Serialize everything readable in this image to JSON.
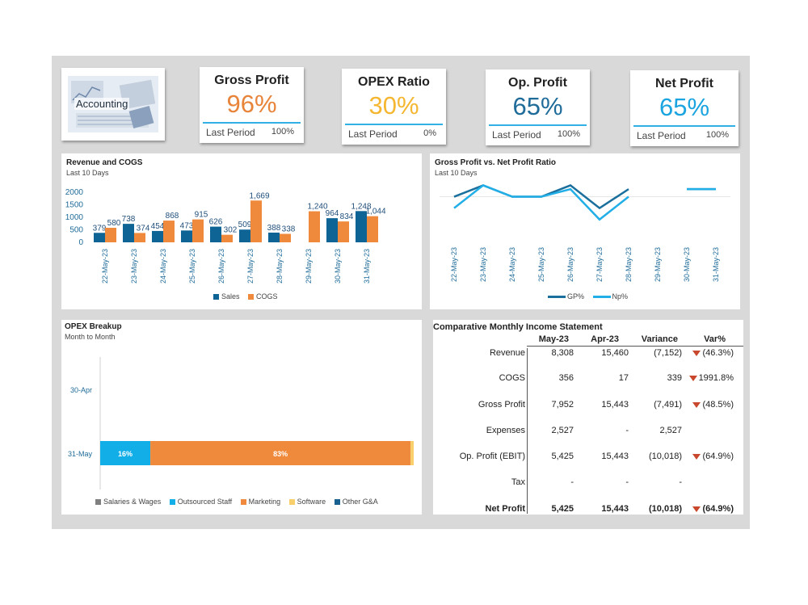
{
  "logo": {
    "label": "Accounting"
  },
  "kpis": [
    {
      "title": "Gross Profit",
      "value": "96%",
      "color": "#e8843a",
      "last_label": "Last Period",
      "last_value": "100%"
    },
    {
      "title": "OPEX Ratio",
      "value": "30%",
      "color": "#f5b731",
      "last_label": "Last Period",
      "last_value": "0%"
    },
    {
      "title": "Op. Profit",
      "value": "65%",
      "color": "#1f6b99",
      "last_label": "Last Period",
      "last_value": "100%"
    },
    {
      "title": "Net Profit",
      "value": "65%",
      "color": "#1ca4e0",
      "last_label": "Last Period",
      "last_value": "100%"
    }
  ],
  "revenue_chart": {
    "title": "Revenue and COGS",
    "subtitle": "Last 10 Days",
    "legend": [
      "Sales",
      "COGS"
    ],
    "colors": {
      "sales": "#0f6496",
      "cogs": "#ef8a3c"
    }
  },
  "gp_chart": {
    "title": "Gross Profit vs. Net Profit Ratio",
    "subtitle": "Last 10 Days",
    "legend": [
      "GP%",
      "Np%"
    ],
    "colors": {
      "gp": "#1a6f9c",
      "np": "#22aee6"
    }
  },
  "opex_chart": {
    "title": "OPEX Breakup",
    "subtitle": "Month to Month",
    "legend": [
      "Salaries & Wages",
      "Outsourced Staff",
      "Marketing",
      "Software",
      "Other G&A"
    ],
    "colors": [
      "#7f7f7f",
      "#12aee8",
      "#ef8a3c",
      "#f8cf6a",
      "#17608f"
    ]
  },
  "chart_data": [
    {
      "type": "bar",
      "categories": [
        "22-May-23",
        "23-May-23",
        "24-May-23",
        "25-May-23",
        "26-May-23",
        "27-May-23",
        "28-May-23",
        "29-May-23",
        "30-May-23",
        "31-May-23"
      ],
      "series": [
        {
          "name": "Sales",
          "values": [
            379,
            738,
            454,
            473,
            626,
            509,
            388,
            null,
            964,
            1248
          ],
          "labels": [
            "379",
            "738",
            "454",
            "473",
            "626",
            "509",
            "388",
            "",
            "964",
            "1,248"
          ]
        },
        {
          "name": "COGS",
          "values": [
            580,
            374,
            868,
            915,
            302,
            1669,
            338,
            1240,
            834,
            1044
          ],
          "labels": [
            "580",
            "374",
            "868",
            "915",
            "302",
            "1,669",
            "338",
            "1,240",
            "834",
            "1,044"
          ]
        }
      ],
      "yticks": [
        "2000",
        "1500",
        "1000",
        "500",
        "0"
      ],
      "ylim": [
        0,
        2000
      ]
    },
    {
      "type": "line",
      "categories": [
        "22-May-23",
        "23-May-23",
        "24-May-23",
        "25-May-23",
        "26-May-23",
        "27-May-23",
        "28-May-23",
        "29-May-23",
        "30-May-23",
        "31-May-23"
      ],
      "series": [
        {
          "name": "GP%",
          "values": [
            0.97,
            1.0,
            0.97,
            0.97,
            1.0,
            0.94,
            0.99,
            null,
            0.99,
            0.99
          ]
        },
        {
          "name": "Np%",
          "values": [
            0.94,
            1.0,
            0.97,
            0.97,
            0.99,
            0.91,
            0.97,
            null,
            0.99,
            0.99
          ]
        }
      ]
    },
    {
      "type": "bar",
      "orientation": "horizontal-stacked",
      "categories": [
        "30-Apr",
        "31-May"
      ],
      "series": [
        {
          "name": "Salaries & Wages",
          "values": [
            0,
            0
          ]
        },
        {
          "name": "Outsourced Staff",
          "values": [
            0,
            0.16
          ],
          "labels": [
            "",
            "16%"
          ]
        },
        {
          "name": "Marketing",
          "values": [
            0,
            0.83
          ],
          "labels": [
            "",
            "83%"
          ]
        },
        {
          "name": "Software",
          "values": [
            0,
            0.01
          ],
          "labels": [
            "",
            "1%"
          ]
        },
        {
          "name": "Other G&A",
          "values": [
            0,
            0
          ]
        }
      ]
    }
  ],
  "income": {
    "title": "Comparative Monthly Income Statement",
    "headers": [
      "May-23",
      "Apr-23",
      "Variance",
      "Var%"
    ],
    "rows": [
      {
        "label": "Revenue",
        "may": "8,308",
        "apr": "15,460",
        "var": "(7,152)",
        "pct": "(46.3%)",
        "down": true,
        "bold": false
      },
      {
        "label": "COGS",
        "may": "356",
        "apr": "17",
        "var": "339",
        "pct": "1991.8%",
        "down": true,
        "bold": false
      },
      {
        "label": "Gross Profit",
        "may": "7,952",
        "apr": "15,443",
        "var": "(7,491)",
        "pct": "(48.5%)",
        "down": true,
        "bold": false
      },
      {
        "label": "Expenses",
        "may": "2,527",
        "apr": "-",
        "var": "2,527",
        "pct": "",
        "down": false,
        "bold": false
      },
      {
        "label": "Op. Profit (EBIT)",
        "may": "5,425",
        "apr": "15,443",
        "var": "(10,018)",
        "pct": "(64.9%)",
        "down": true,
        "bold": false
      },
      {
        "label": "Tax",
        "may": "-",
        "apr": "-",
        "var": "-",
        "pct": "",
        "down": false,
        "bold": false
      },
      {
        "label": "Net Profit",
        "may": "5,425",
        "apr": "15,443",
        "var": "(10,018)",
        "pct": "(64.9%)",
        "down": true,
        "bold": true
      }
    ]
  }
}
